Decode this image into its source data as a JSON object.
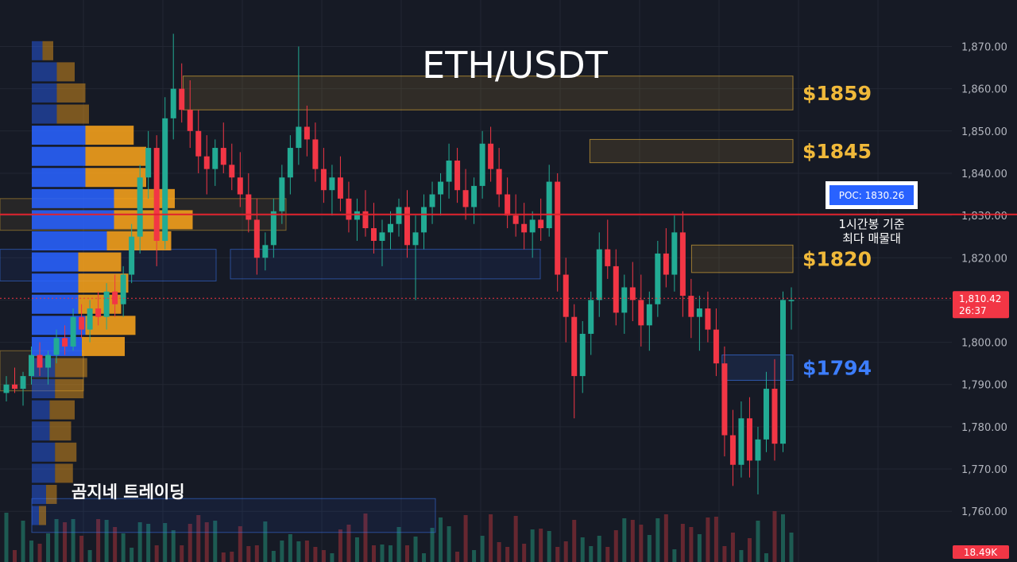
{
  "chart_data": {
    "type": "candlestick",
    "title": "ETH/USDT",
    "y_axis": {
      "ticks": [
        "1,760.00",
        "1,770.00",
        "1,780.00",
        "1,790.00",
        "1,800.00",
        "1,810.00",
        "1,820.00",
        "1,830.00",
        "1,840.00",
        "1,850.00",
        "1,860.00",
        "1,870.00"
      ],
      "ylim": [
        1748,
        1881
      ],
      "position": "right"
    },
    "current_price": {
      "label": "1,810.42",
      "countdown": "26:37",
      "value": 1810.42,
      "color": "#f23645"
    },
    "volume_tag": {
      "label": "18.49K",
      "color": "#f23645"
    },
    "poc": {
      "label": "POC: 1830.26",
      "value": 1830.26,
      "note_lines": [
        "1시간봉 기준",
        "최다 매물대"
      ],
      "line_color": "#e0222d",
      "tag_color": "#2962ff"
    },
    "zones": [
      {
        "label": "$1859",
        "low": 1855,
        "high": 1863,
        "color": "#f0b93a",
        "x_start": 0.18
      },
      {
        "label": "$1845",
        "low": 1842.5,
        "high": 1848,
        "color": "#f0b93a",
        "x_start": 0.58
      },
      {
        "label": "$1820",
        "low": 1816.5,
        "high": 1823,
        "color": "#f0b93a",
        "x_start": 0.68
      },
      {
        "label": "$1794",
        "low": 1791,
        "high": 1797,
        "color": "#3d7eff",
        "x_start": 0.71
      }
    ],
    "volume_profile": {
      "levels": [
        1869,
        1864,
        1859,
        1854,
        1849,
        1844,
        1839,
        1834,
        1829,
        1824,
        1819,
        1814,
        1809,
        1804,
        1799,
        1794,
        1789,
        1784,
        1779,
        1774,
        1769,
        1764,
        1759
      ],
      "buy": [
        6,
        14,
        14,
        14,
        30,
        30,
        30,
        46,
        46,
        42,
        26,
        26,
        26,
        30,
        28,
        13,
        13,
        10,
        10,
        13,
        13,
        8,
        4
      ],
      "sell": [
        6,
        10,
        16,
        18,
        27,
        34,
        34,
        34,
        44,
        36,
        24,
        28,
        24,
        28,
        24,
        18,
        16,
        14,
        12,
        12,
        10,
        6,
        4
      ],
      "buy_color": "#2962ff",
      "sell_color": "#f7a21b"
    },
    "candles": [
      [
        1788,
        1792,
        1786,
        1790
      ],
      [
        1790,
        1794,
        1788,
        1789
      ],
      [
        1789,
        1793,
        1785,
        1792
      ],
      [
        1792,
        1799,
        1790,
        1797
      ],
      [
        1797,
        1800,
        1792,
        1794
      ],
      [
        1794,
        1798,
        1790,
        1797
      ],
      [
        1797,
        1803,
        1795,
        1801
      ],
      [
        1801,
        1804,
        1797,
        1799
      ],
      [
        1799,
        1808,
        1798,
        1806
      ],
      [
        1806,
        1809,
        1801,
        1803
      ],
      [
        1803,
        1810,
        1800,
        1808
      ],
      [
        1808,
        1812,
        1804,
        1806
      ],
      [
        1806,
        1814,
        1803,
        1812
      ],
      [
        1812,
        1816,
        1806,
        1809
      ],
      [
        1809,
        1818,
        1806,
        1816
      ],
      [
        1816,
        1828,
        1814,
        1825
      ],
      [
        1825,
        1842,
        1821,
        1839
      ],
      [
        1839,
        1850,
        1834,
        1846
      ],
      [
        1846,
        1849,
        1818,
        1824
      ],
      [
        1824,
        1858,
        1822,
        1853
      ],
      [
        1853,
        1873,
        1848,
        1860
      ],
      [
        1860,
        1866,
        1852,
        1855
      ],
      [
        1855,
        1862,
        1846,
        1850
      ],
      [
        1850,
        1855,
        1840,
        1844
      ],
      [
        1844,
        1849,
        1835,
        1841
      ],
      [
        1841,
        1848,
        1837,
        1846
      ],
      [
        1846,
        1852,
        1840,
        1842
      ],
      [
        1842,
        1847,
        1836,
        1839
      ],
      [
        1839,
        1845,
        1832,
        1835
      ],
      [
        1835,
        1840,
        1826,
        1829
      ],
      [
        1829,
        1834,
        1816,
        1820
      ],
      [
        1820,
        1826,
        1817,
        1823
      ],
      [
        1823,
        1834,
        1820,
        1831
      ],
      [
        1831,
        1842,
        1828,
        1839
      ],
      [
        1839,
        1849,
        1835,
        1846
      ],
      [
        1846,
        1870,
        1842,
        1851
      ],
      [
        1851,
        1856,
        1844,
        1848
      ],
      [
        1848,
        1852,
        1838,
        1841
      ],
      [
        1841,
        1846,
        1833,
        1836
      ],
      [
        1836,
        1842,
        1830,
        1839
      ],
      [
        1839,
        1844,
        1831,
        1834
      ],
      [
        1834,
        1838,
        1826,
        1829
      ],
      [
        1829,
        1834,
        1824,
        1831
      ],
      [
        1831,
        1836,
        1825,
        1827
      ],
      [
        1827,
        1833,
        1821,
        1824
      ],
      [
        1824,
        1829,
        1818,
        1826
      ],
      [
        1826,
        1831,
        1822,
        1828
      ],
      [
        1828,
        1834,
        1825,
        1832
      ],
      [
        1832,
        1836,
        1820,
        1823
      ],
      [
        1823,
        1830,
        1810,
        1826
      ],
      [
        1826,
        1835,
        1822,
        1832
      ],
      [
        1832,
        1838,
        1828,
        1835
      ],
      [
        1835,
        1840,
        1830,
        1838
      ],
      [
        1838,
        1847,
        1834,
        1843
      ],
      [
        1843,
        1846,
        1833,
        1836
      ],
      [
        1836,
        1841,
        1829,
        1832
      ],
      [
        1832,
        1839,
        1828,
        1837
      ],
      [
        1837,
        1850,
        1834,
        1847
      ],
      [
        1847,
        1851,
        1838,
        1841
      ],
      [
        1841,
        1846,
        1832,
        1835
      ],
      [
        1835,
        1839,
        1827,
        1830
      ],
      [
        1830,
        1835,
        1825,
        1828
      ],
      [
        1828,
        1833,
        1822,
        1826
      ],
      [
        1826,
        1831,
        1820,
        1829
      ],
      [
        1829,
        1834,
        1824,
        1827
      ],
      [
        1827,
        1842,
        1825,
        1838
      ],
      [
        1838,
        1840,
        1812,
        1816
      ],
      [
        1816,
        1820,
        1800,
        1806
      ],
      [
        1806,
        1809,
        1782,
        1792
      ],
      [
        1792,
        1805,
        1788,
        1802
      ],
      [
        1802,
        1812,
        1797,
        1810
      ],
      [
        1810,
        1826,
        1806,
        1822
      ],
      [
        1822,
        1829,
        1815,
        1818
      ],
      [
        1818,
        1822,
        1804,
        1807
      ],
      [
        1807,
        1816,
        1802,
        1813
      ],
      [
        1813,
        1819,
        1805,
        1810
      ],
      [
        1810,
        1816,
        1799,
        1804
      ],
      [
        1804,
        1812,
        1798,
        1809
      ],
      [
        1809,
        1824,
        1806,
        1821
      ],
      [
        1821,
        1827,
        1813,
        1816
      ],
      [
        1816,
        1830,
        1812,
        1826
      ],
      [
        1826,
        1831,
        1806,
        1811
      ],
      [
        1811,
        1815,
        1801,
        1806
      ],
      [
        1806,
        1811,
        1798,
        1808
      ],
      [
        1808,
        1812,
        1800,
        1803
      ],
      [
        1803,
        1808,
        1792,
        1795
      ],
      [
        1795,
        1799,
        1773,
        1778
      ],
      [
        1778,
        1784,
        1766,
        1771
      ],
      [
        1771,
        1786,
        1768,
        1782
      ],
      [
        1782,
        1787,
        1768,
        1772
      ],
      [
        1772,
        1780,
        1764,
        1777
      ],
      [
        1777,
        1793,
        1774,
        1789
      ],
      [
        1789,
        1796,
        1772,
        1776
      ],
      [
        1776,
        1812,
        1774,
        1810
      ],
      [
        1810,
        1813,
        1803,
        1810
      ]
    ],
    "grid": true,
    "legend": "none"
  },
  "labels": {
    "watermark": "곰지네 트레이딩"
  }
}
